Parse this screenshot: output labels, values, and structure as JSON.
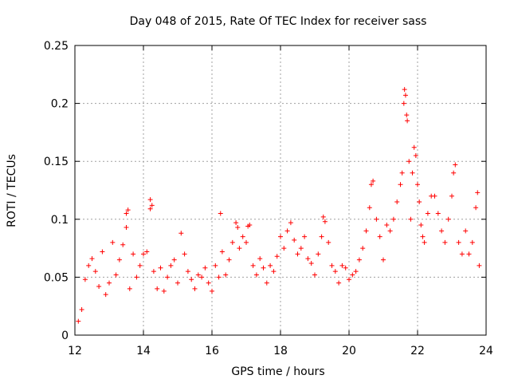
{
  "chart_data": {
    "type": "scatter",
    "title": "Day 048 of 2015, Rate Of TEC Index for receiver sass",
    "xlabel": "GPS time / hours",
    "ylabel": "ROTI / TECUs",
    "xlim": [
      12,
      24
    ],
    "ylim": [
      0,
      0.25
    ],
    "xticks": [
      12,
      14,
      16,
      18,
      20,
      22,
      24
    ],
    "xtick_labels": [
      "12",
      "14",
      "16",
      "18",
      "20",
      "22",
      "24"
    ],
    "yticks": [
      0,
      0.05,
      0.1,
      0.15,
      0.2,
      0.25
    ],
    "ytick_labels": [
      "0",
      "0.05",
      "0.1",
      "0.15",
      "0.2",
      "0.25"
    ],
    "grid": true,
    "marker": "+",
    "color": "#ff0000",
    "series": [
      {
        "name": "ROTI",
        "points": [
          [
            12.1,
            0.012
          ],
          [
            12.2,
            0.022
          ],
          [
            12.3,
            0.048
          ],
          [
            12.4,
            0.06
          ],
          [
            12.5,
            0.066
          ],
          [
            12.6,
            0.055
          ],
          [
            12.7,
            0.042
          ],
          [
            12.8,
            0.072
          ],
          [
            12.9,
            0.035
          ],
          [
            13.0,
            0.045
          ],
          [
            13.1,
            0.08
          ],
          [
            13.2,
            0.052
          ],
          [
            13.3,
            0.065
          ],
          [
            13.4,
            0.078
          ],
          [
            13.5,
            0.105
          ],
          [
            13.55,
            0.108
          ],
          [
            13.5,
            0.093
          ],
          [
            13.6,
            0.04
          ],
          [
            13.7,
            0.07
          ],
          [
            13.8,
            0.05
          ],
          [
            13.9,
            0.06
          ],
          [
            14.0,
            0.07
          ],
          [
            14.1,
            0.072
          ],
          [
            14.2,
            0.117
          ],
          [
            14.25,
            0.112
          ],
          [
            14.2,
            0.109
          ],
          [
            14.3,
            0.055
          ],
          [
            14.4,
            0.04
          ],
          [
            14.5,
            0.058
          ],
          [
            14.6,
            0.038
          ],
          [
            14.7,
            0.05
          ],
          [
            14.8,
            0.06
          ],
          [
            14.9,
            0.065
          ],
          [
            15.0,
            0.045
          ],
          [
            15.1,
            0.088
          ],
          [
            15.2,
            0.07
          ],
          [
            15.3,
            0.055
          ],
          [
            15.4,
            0.048
          ],
          [
            15.5,
            0.04
          ],
          [
            15.6,
            0.052
          ],
          [
            15.7,
            0.05
          ],
          [
            15.8,
            0.058
          ],
          [
            15.9,
            0.045
          ],
          [
            16.0,
            0.038
          ],
          [
            16.1,
            0.06
          ],
          [
            16.2,
            0.05
          ],
          [
            16.3,
            0.072
          ],
          [
            16.25,
            0.105
          ],
          [
            16.4,
            0.052
          ],
          [
            16.5,
            0.065
          ],
          [
            16.6,
            0.08
          ],
          [
            16.7,
            0.097
          ],
          [
            16.75,
            0.093
          ],
          [
            16.8,
            0.075
          ],
          [
            16.9,
            0.085
          ],
          [
            17.0,
            0.08
          ],
          [
            17.05,
            0.094
          ],
          [
            17.1,
            0.095
          ],
          [
            17.2,
            0.06
          ],
          [
            17.3,
            0.052
          ],
          [
            17.4,
            0.066
          ],
          [
            17.5,
            0.058
          ],
          [
            17.6,
            0.045
          ],
          [
            17.7,
            0.06
          ],
          [
            17.8,
            0.055
          ],
          [
            17.9,
            0.068
          ],
          [
            18.0,
            0.085
          ],
          [
            18.1,
            0.075
          ],
          [
            18.2,
            0.09
          ],
          [
            18.3,
            0.097
          ],
          [
            18.4,
            0.082
          ],
          [
            18.5,
            0.07
          ],
          [
            18.6,
            0.075
          ],
          [
            18.7,
            0.085
          ],
          [
            18.8,
            0.066
          ],
          [
            18.9,
            0.062
          ],
          [
            19.0,
            0.052
          ],
          [
            19.1,
            0.07
          ],
          [
            19.2,
            0.085
          ],
          [
            19.25,
            0.102
          ],
          [
            19.3,
            0.098
          ],
          [
            19.4,
            0.08
          ],
          [
            19.5,
            0.06
          ],
          [
            19.6,
            0.055
          ],
          [
            19.7,
            0.045
          ],
          [
            19.8,
            0.06
          ],
          [
            19.9,
            0.058
          ],
          [
            20.0,
            0.048
          ],
          [
            20.1,
            0.052
          ],
          [
            20.2,
            0.055
          ],
          [
            20.3,
            0.065
          ],
          [
            20.4,
            0.075
          ],
          [
            20.5,
            0.09
          ],
          [
            20.6,
            0.11
          ],
          [
            20.65,
            0.13
          ],
          [
            20.7,
            0.133
          ],
          [
            20.8,
            0.1
          ],
          [
            20.9,
            0.085
          ],
          [
            21.0,
            0.065
          ],
          [
            21.1,
            0.095
          ],
          [
            21.2,
            0.09
          ],
          [
            21.3,
            0.1
          ],
          [
            21.4,
            0.115
          ],
          [
            21.5,
            0.13
          ],
          [
            21.55,
            0.14
          ],
          [
            21.6,
            0.2
          ],
          [
            21.62,
            0.212
          ],
          [
            21.65,
            0.207
          ],
          [
            21.68,
            0.19
          ],
          [
            21.7,
            0.185
          ],
          [
            21.75,
            0.15
          ],
          [
            21.8,
            0.1
          ],
          [
            21.85,
            0.14
          ],
          [
            21.9,
            0.162
          ],
          [
            21.95,
            0.155
          ],
          [
            22.0,
            0.13
          ],
          [
            22.05,
            0.115
          ],
          [
            22.1,
            0.095
          ],
          [
            22.15,
            0.085
          ],
          [
            22.2,
            0.08
          ],
          [
            22.3,
            0.105
          ],
          [
            22.4,
            0.12
          ],
          [
            22.5,
            0.12
          ],
          [
            22.6,
            0.105
          ],
          [
            22.7,
            0.09
          ],
          [
            22.8,
            0.08
          ],
          [
            22.9,
            0.1
          ],
          [
            23.0,
            0.12
          ],
          [
            23.05,
            0.14
          ],
          [
            23.1,
            0.147
          ],
          [
            23.2,
            0.08
          ],
          [
            23.3,
            0.07
          ],
          [
            23.4,
            0.09
          ],
          [
            23.5,
            0.07
          ],
          [
            23.6,
            0.08
          ],
          [
            23.7,
            0.11
          ],
          [
            23.75,
            0.123
          ],
          [
            23.8,
            0.06
          ]
        ]
      }
    ]
  }
}
